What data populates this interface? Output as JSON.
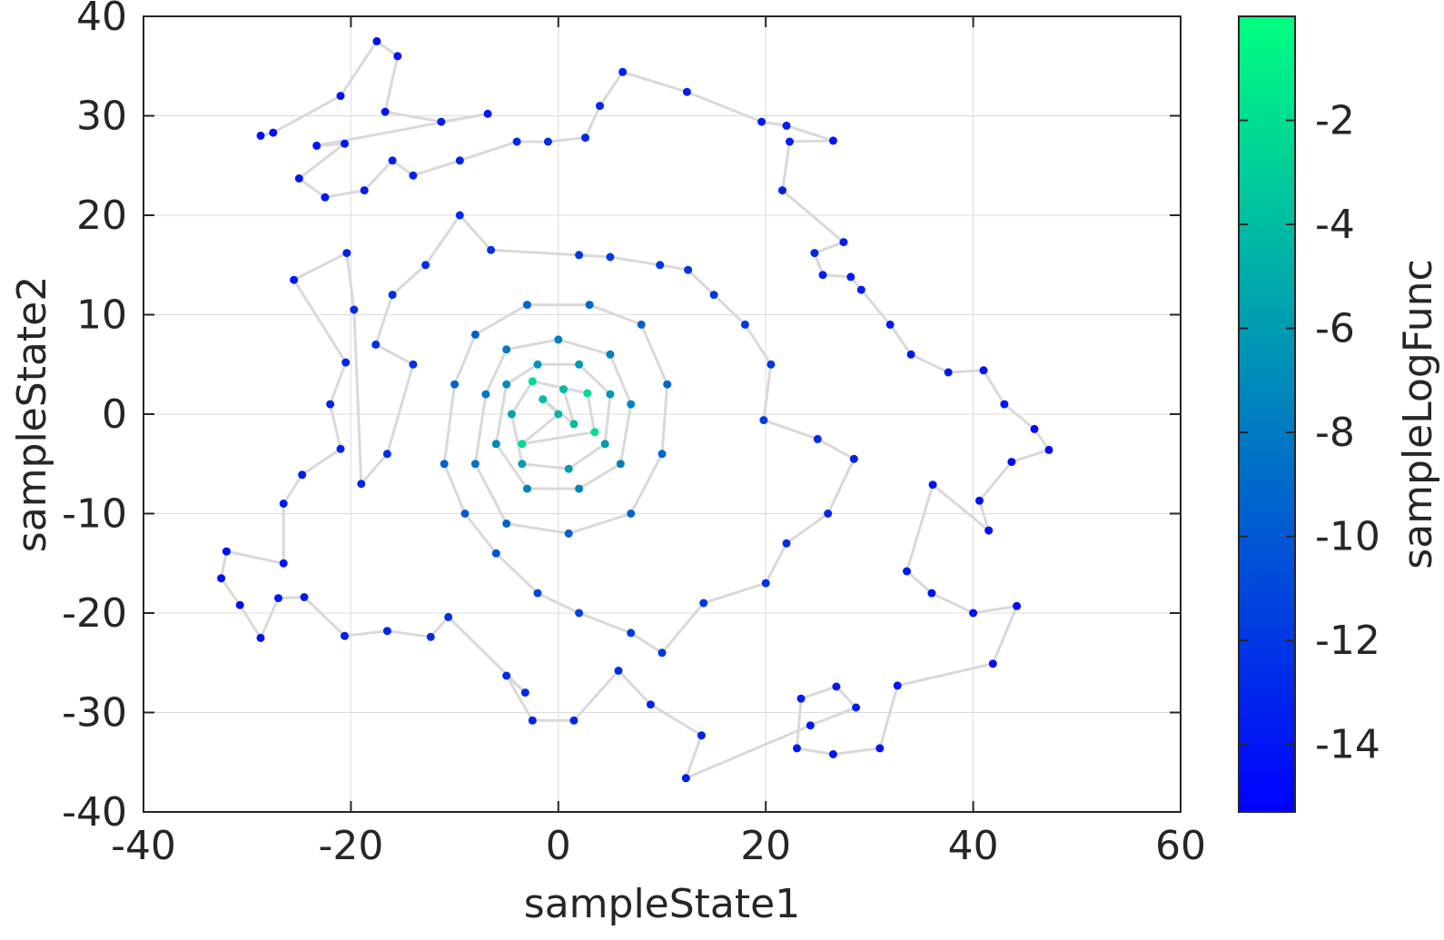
{
  "chart_data": {
    "type": "scatter",
    "title": "",
    "xlabel": "sampleState1",
    "ylabel": "sampleState2",
    "xlim": [
      -40,
      60
    ],
    "ylim": [
      -40,
      40
    ],
    "xticks": [
      "-40",
      "-20",
      "0",
      "20",
      "40",
      "60"
    ],
    "yticks": [
      "40",
      "30",
      "20",
      "10",
      "0",
      "-10",
      "-20",
      "-30",
      "-40"
    ],
    "grid": true,
    "colorbar": {
      "label": "sampleLogFunc",
      "clim": [
        -15.3,
        0
      ],
      "ticks": [
        "-2",
        "-4",
        "-6",
        "-8",
        "-10",
        "-12",
        "-14"
      ],
      "colormap_low": "#0000ff",
      "colormap_high": "#00ff80"
    },
    "trace_line_color": "#d9d9d9",
    "series": [
      {
        "color_by": "sampleLogFunc",
        "points": [
          [
            -28.7,
            28.0,
            -14.5
          ],
          [
            -27.5,
            28.3,
            -14.5
          ],
          [
            -21.0,
            32.0,
            -14.0
          ],
          [
            -17.5,
            37.5,
            -14.5
          ],
          [
            -15.5,
            36.0,
            -14.0
          ],
          [
            -16.7,
            30.4,
            -14.0
          ],
          [
            -11.3,
            29.4,
            -13.5
          ],
          [
            -6.8,
            30.2,
            -13.5
          ],
          [
            -23.3,
            27.0,
            -14.0
          ],
          [
            -20.6,
            27.2,
            -13.8
          ],
          [
            -25.0,
            23.7,
            -14.0
          ],
          [
            -22.5,
            21.8,
            -13.8
          ],
          [
            -18.7,
            22.5,
            -13.5
          ],
          [
            -16.0,
            25.5,
            -13.5
          ],
          [
            -14.0,
            24.0,
            -13.2
          ],
          [
            -9.5,
            25.5,
            -13.0
          ],
          [
            -4.0,
            27.4,
            -13.0
          ],
          [
            -1.0,
            27.4,
            -12.8
          ],
          [
            2.6,
            27.8,
            -12.8
          ],
          [
            4.0,
            31.0,
            -13.0
          ],
          [
            6.2,
            34.4,
            -13.5
          ],
          [
            12.4,
            32.4,
            -13.5
          ],
          [
            19.6,
            29.4,
            -13.5
          ],
          [
            22.0,
            29.0,
            -13.5
          ],
          [
            26.5,
            27.5,
            -13.8
          ],
          [
            22.3,
            27.4,
            -13.5
          ],
          [
            21.6,
            22.5,
            -13.2
          ],
          [
            27.5,
            17.3,
            -13.5
          ],
          [
            24.7,
            16.2,
            -13.2
          ],
          [
            25.5,
            14.0,
            -13.3
          ],
          [
            28.2,
            13.8,
            -13.5
          ],
          [
            29.2,
            12.5,
            -13.5
          ],
          [
            32.0,
            9.0,
            -13.6
          ],
          [
            34.0,
            6.0,
            -13.7
          ],
          [
            37.6,
            4.2,
            -13.8
          ],
          [
            41.0,
            4.4,
            -14.0
          ],
          [
            43.0,
            1.0,
            -14.2
          ],
          [
            45.9,
            -1.5,
            -14.5
          ],
          [
            47.3,
            -3.6,
            -14.8
          ],
          [
            43.7,
            -4.8,
            -14.6
          ],
          [
            40.6,
            -8.7,
            -14.3
          ],
          [
            41.5,
            -11.7,
            -14.2
          ],
          [
            36.1,
            -7.1,
            -14.0
          ],
          [
            33.6,
            -15.8,
            -14.0
          ],
          [
            36.0,
            -18.0,
            -14.2
          ],
          [
            40.0,
            -20.0,
            -14.3
          ],
          [
            44.2,
            -19.3,
            -14.5
          ],
          [
            41.9,
            -25.1,
            -14.3
          ],
          [
            32.7,
            -27.3,
            -14.0
          ],
          [
            31.0,
            -33.6,
            -14.2
          ],
          [
            26.5,
            -34.2,
            -14.0
          ],
          [
            23.0,
            -33.6,
            -13.8
          ],
          [
            23.4,
            -28.6,
            -13.6
          ],
          [
            26.8,
            -27.4,
            -13.5
          ],
          [
            28.7,
            -29.5,
            -13.5
          ],
          [
            24.3,
            -31.3,
            -13.6
          ],
          [
            12.3,
            -36.6,
            -13.5
          ],
          [
            13.8,
            -32.3,
            -13.2
          ],
          [
            8.9,
            -29.2,
            -13.0
          ],
          [
            5.8,
            -25.8,
            -12.6
          ],
          [
            1.5,
            -30.8,
            -13.0
          ],
          [
            -2.5,
            -30.8,
            -13.0
          ],
          [
            -5.0,
            -26.3,
            -12.8
          ],
          [
            -3.2,
            -28.0,
            -12.7
          ],
          [
            -10.6,
            -20.4,
            -12.5
          ],
          [
            -12.3,
            -22.4,
            -12.7
          ],
          [
            -16.5,
            -21.8,
            -13.0
          ],
          [
            -20.6,
            -22.3,
            -13.3
          ],
          [
            -24.5,
            -18.4,
            -13.6
          ],
          [
            -27.0,
            -18.5,
            -13.8
          ],
          [
            -28.7,
            -22.5,
            -14.2
          ],
          [
            -30.7,
            -19.2,
            -14.3
          ],
          [
            -32.5,
            -16.5,
            -14.6
          ],
          [
            -32.0,
            -13.8,
            -14.5
          ],
          [
            -26.5,
            -15.0,
            -14.0
          ],
          [
            -26.5,
            -9.0,
            -13.7
          ],
          [
            -24.7,
            -6.1,
            -13.5
          ],
          [
            -21.0,
            -3.5,
            -13.2
          ],
          [
            -22.0,
            1.0,
            -13.0
          ],
          [
            -20.5,
            5.2,
            -13.0
          ],
          [
            -25.5,
            13.5,
            -13.6
          ],
          [
            -20.4,
            16.2,
            -13.3
          ],
          [
            -19.7,
            10.5,
            -12.8
          ],
          [
            -19.0,
            -7.0,
            -13.0
          ],
          [
            -16.5,
            -4.0,
            -12.5
          ],
          [
            -14.0,
            5.0,
            -12.2
          ],
          [
            -17.6,
            7.0,
            -12.5
          ],
          [
            -16.0,
            12.0,
            -12.6
          ],
          [
            -12.8,
            15.0,
            -12.4
          ],
          [
            -9.5,
            20.0,
            -12.6
          ],
          [
            -6.5,
            16.5,
            -12.2
          ],
          [
            2.0,
            16.0,
            -12.0
          ],
          [
            5.0,
            15.8,
            -11.8
          ],
          [
            9.8,
            15.0,
            -12.0
          ],
          [
            12.5,
            14.5,
            -12.3
          ],
          [
            15.0,
            12.0,
            -12.0
          ],
          [
            18.0,
            9.0,
            -11.9
          ],
          [
            20.5,
            5.0,
            -11.8
          ],
          [
            19.8,
            -0.6,
            -11.6
          ],
          [
            25.0,
            -2.5,
            -12.8
          ],
          [
            28.5,
            -4.5,
            -13.3
          ],
          [
            26.0,
            -10.0,
            -13.0
          ],
          [
            22.0,
            -13.0,
            -12.7
          ],
          [
            20.0,
            -17.0,
            -12.6
          ],
          [
            14.0,
            -19.0,
            -12.0
          ],
          [
            10.0,
            -24.0,
            -12.0
          ],
          [
            7.0,
            -22.0,
            -11.8
          ],
          [
            2.0,
            -20.0,
            -11.3
          ],
          [
            -2.0,
            -18.0,
            -11.0
          ],
          [
            -6.0,
            -14.0,
            -10.4
          ],
          [
            -9.0,
            -10.0,
            -9.8
          ],
          [
            -11.0,
            -5.0,
            -9.5
          ],
          [
            -10.0,
            3.0,
            -9.5
          ],
          [
            -8.0,
            8.0,
            -9.6
          ],
          [
            -3.0,
            11.0,
            -9.4
          ],
          [
            3.0,
            11.0,
            -9.3
          ],
          [
            8.0,
            9.0,
            -9.4
          ],
          [
            10.5,
            3.0,
            -9.3
          ],
          [
            10.0,
            -4.0,
            -9.2
          ],
          [
            7.0,
            -10.0,
            -9.3
          ],
          [
            1.0,
            -12.0,
            -9.5
          ],
          [
            -5.0,
            -11.0,
            -9.4
          ],
          [
            -8.0,
            -5.0,
            -8.6
          ],
          [
            -7.0,
            2.0,
            -8.3
          ],
          [
            -5.0,
            6.5,
            -8.0
          ],
          [
            0.0,
            7.5,
            -7.6
          ],
          [
            5.0,
            6.0,
            -7.6
          ],
          [
            7.0,
            1.0,
            -7.4
          ],
          [
            6.0,
            -5.0,
            -7.6
          ],
          [
            2.0,
            -7.5,
            -7.5
          ],
          [
            -3.0,
            -7.5,
            -7.4
          ],
          [
            -6.0,
            -3.0,
            -7.2
          ],
          [
            -5.0,
            3.0,
            -6.8
          ],
          [
            -2.0,
            5.0,
            -6.2
          ],
          [
            2.0,
            5.0,
            -6.2
          ],
          [
            5.0,
            2.0,
            -6.4
          ],
          [
            4.5,
            -3.0,
            -6.0
          ],
          [
            1.0,
            -5.5,
            -6.0
          ],
          [
            -3.5,
            -5.0,
            -5.8
          ],
          [
            -4.5,
            0.0,
            -5.6
          ],
          [
            -2.5,
            3.3,
            -2.2
          ],
          [
            2.8,
            2.1,
            -2.2
          ],
          [
            3.5,
            -1.8,
            -2.0
          ],
          [
            -3.5,
            -3.0,
            -2.4
          ],
          [
            0.0,
            0.0,
            -4.5
          ],
          [
            -1.5,
            1.5,
            -4.0
          ],
          [
            1.5,
            -1.0,
            -4.0
          ],
          [
            0.5,
            2.5,
            -4.3
          ]
        ]
      }
    ]
  }
}
